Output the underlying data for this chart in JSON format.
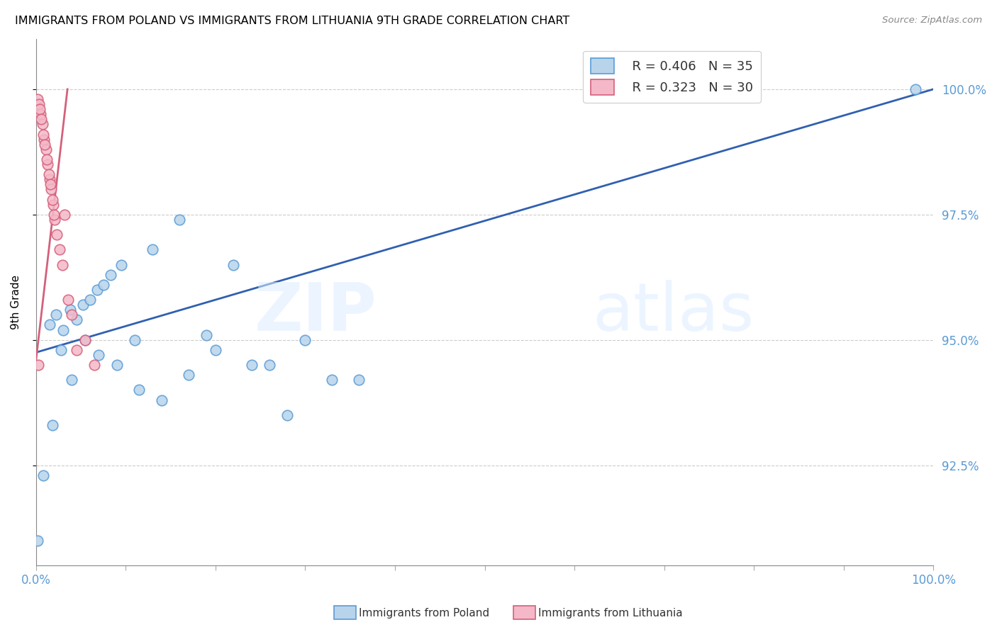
{
  "title": "IMMIGRANTS FROM POLAND VS IMMIGRANTS FROM LITHUANIA 9TH GRADE CORRELATION CHART",
  "source": "Source: ZipAtlas.com",
  "ylabel": "9th Grade",
  "xlim": [
    0.0,
    100.0
  ],
  "ylim": [
    90.5,
    101.0
  ],
  "y_tick_values": [
    92.5,
    95.0,
    97.5,
    100.0
  ],
  "y_tick_labels": [
    "92.5%",
    "95.0%",
    "97.5%",
    "100.0%"
  ],
  "color_poland_fill": "#b8d4eb",
  "color_poland_edge": "#5b9bd5",
  "color_lithuania_fill": "#f4b8c8",
  "color_lithuania_edge": "#d4607a",
  "color_trend_poland": "#3060b0",
  "color_trend_lithuania": "#d4607a",
  "color_tick": "#5b9bd5",
  "legend_R1": "R = 0.406",
  "legend_N1": "N = 35",
  "legend_R2": "R = 0.323",
  "legend_N2": "N = 30",
  "poland_x": [
    0.15,
    0.8,
    1.5,
    2.2,
    3.0,
    3.8,
    4.5,
    5.2,
    6.0,
    6.8,
    7.5,
    8.3,
    9.5,
    11.0,
    13.0,
    16.0,
    19.0,
    22.0,
    26.0,
    30.0,
    36.0,
    1.8,
    2.8,
    4.0,
    5.5,
    7.0,
    9.0,
    11.5,
    14.0,
    17.0,
    20.0,
    24.0,
    28.0,
    33.0,
    98.0
  ],
  "poland_y": [
    91.0,
    92.3,
    95.3,
    95.5,
    95.2,
    95.6,
    95.4,
    95.7,
    95.8,
    96.0,
    96.1,
    96.3,
    96.5,
    95.0,
    96.8,
    97.4,
    95.1,
    96.5,
    94.5,
    95.0,
    94.2,
    93.3,
    94.8,
    94.2,
    95.0,
    94.7,
    94.5,
    94.0,
    93.8,
    94.3,
    94.8,
    94.5,
    93.5,
    94.2,
    100.0
  ],
  "lithuania_x": [
    0.15,
    0.3,
    0.5,
    0.7,
    0.9,
    1.1,
    1.3,
    1.5,
    1.7,
    1.9,
    2.1,
    0.4,
    0.6,
    0.8,
    1.0,
    1.2,
    1.4,
    1.6,
    1.8,
    2.0,
    2.3,
    2.6,
    2.9,
    3.2,
    3.6,
    4.0,
    4.5,
    5.5,
    6.5,
    0.25
  ],
  "lithuania_y": [
    99.8,
    99.7,
    99.5,
    99.3,
    99.0,
    98.8,
    98.5,
    98.2,
    98.0,
    97.7,
    97.4,
    99.6,
    99.4,
    99.1,
    98.9,
    98.6,
    98.3,
    98.1,
    97.8,
    97.5,
    97.1,
    96.8,
    96.5,
    97.5,
    95.8,
    95.5,
    94.8,
    95.0,
    94.5,
    94.5
  ],
  "trend_poland_x0": 0.0,
  "trend_poland_x1": 100.0,
  "trend_poland_y0": 94.75,
  "trend_poland_y1": 100.0,
  "trend_lithuania_x0": 0.0,
  "trend_lithuania_x1": 3.5,
  "trend_lithuania_y0": 94.6,
  "trend_lithuania_y1": 100.0
}
